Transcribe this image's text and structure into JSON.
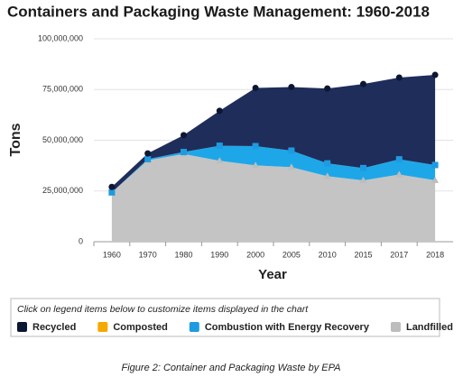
{
  "chart_data": {
    "type": "stacked-area",
    "title": "Containers and Packaging Waste Management: 1960-2018",
    "x_label": "Year",
    "y_label": "Tons",
    "categories": [
      "1960",
      "1970",
      "1980",
      "1990",
      "2000",
      "2005",
      "2010",
      "2015",
      "2017",
      "2018"
    ],
    "series": [
      {
        "name": "Recycled",
        "color": "#1f2d5a",
        "marker_color": "#0c1733",
        "marker": "circle",
        "values": [
          2700000,
          2800000,
          8300000,
          17200000,
          28700000,
          31300000,
          36900000,
          41400000,
          40300000,
          44400000
        ]
      },
      {
        "name": "Composted",
        "color": "#f5a800",
        "marker_color": "#f5a800",
        "marker": "none",
        "values": [
          0,
          0,
          0,
          0,
          0,
          0,
          0,
          0,
          0,
          0
        ]
      },
      {
        "name": "Combustion with Energy Recovery",
        "color": "#1ea7e8",
        "marker_color": "#1e9be0",
        "marker": "square",
        "values": [
          0,
          600000,
          1000000,
          7400000,
          9500000,
          8200000,
          6300000,
          6100000,
          7500000,
          7500000
        ]
      },
      {
        "name": "Landfilled",
        "color": "#c4c4c4",
        "marker_color": "#bdbdbd",
        "marker": "triangle",
        "values": [
          24300000,
          40100000,
          43200000,
          39900000,
          37600000,
          36700000,
          32300000,
          30200000,
          33100000,
          30300000
        ]
      }
    ],
    "ylim": [
      0,
      100000000
    ],
    "yticks": [
      0,
      {
        "value": 25000000,
        "label": "25,000,000"
      },
      {
        "value": 50000000,
        "label": "50,000,000"
      },
      {
        "value": 75000000,
        "label": "75,000,000"
      },
      {
        "value": 100000000,
        "label": "100,000,000"
      }
    ],
    "grid": true,
    "legend_note": "Click on legend items below to customize items displayed in the chart",
    "caption": "Figure 2: Container and Packaging Waste by EPA"
  }
}
